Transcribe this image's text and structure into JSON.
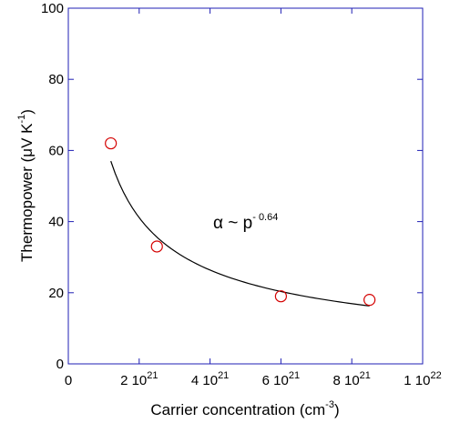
{
  "chart_data": {
    "type": "scatter",
    "xlabel": {
      "text": "Carrier concentration (cm",
      "sup": "-3",
      "tail": ")"
    },
    "ylabel": {
      "text": "Thermopower (μV K",
      "sup": "-1",
      "tail": ")"
    },
    "xlim": [
      0,
      1e+22
    ],
    "ylim": [
      0,
      100
    ],
    "x_ticks": [
      {
        "value": 0,
        "mantissa": "0",
        "exp": ""
      },
      {
        "value": 2e+21,
        "mantissa": "2 10",
        "exp": "21"
      },
      {
        "value": 4e+21,
        "mantissa": "4 10",
        "exp": "21"
      },
      {
        "value": 6e+21,
        "mantissa": "6 10",
        "exp": "21"
      },
      {
        "value": 8e+21,
        "mantissa": "8 10",
        "exp": "21"
      },
      {
        "value": 1e+22,
        "mantissa": "1 10",
        "exp": "22"
      }
    ],
    "y_ticks": [
      0,
      20,
      40,
      60,
      80,
      100
    ],
    "points": [
      {
        "x": 1.2e+21,
        "y": 62
      },
      {
        "x": 2.5e+21,
        "y": 33
      },
      {
        "x": 6e+21,
        "y": 19
      },
      {
        "x": 8.5e+21,
        "y": 18
      }
    ],
    "fit": {
      "amplitude": 57,
      "x_ref": 1.2e+21,
      "exponent": -0.64,
      "x_range": [
        1.2e+21,
        8.5e+21
      ]
    },
    "annotation": {
      "text": "α ~ p",
      "sup": "- 0.64",
      "x": 4.2e+21,
      "y": 38
    },
    "colors": {
      "axes": "#1f1fb4",
      "points": "#d40000",
      "fit": "#000000"
    },
    "grid": false
  }
}
